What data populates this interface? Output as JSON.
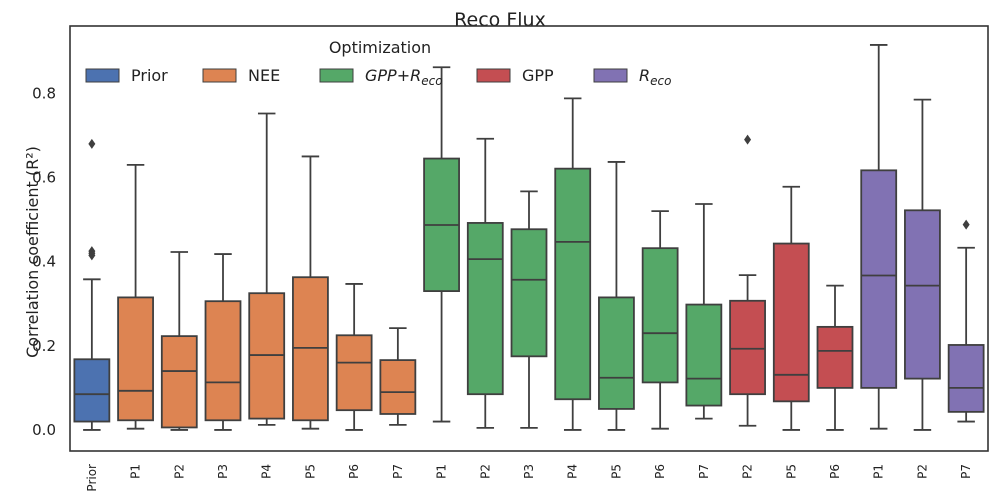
{
  "chart_data": {
    "type": "box",
    "title": "Reco Flux",
    "ylabel": "Correlation coefficient (R²)",
    "ylim": [
      -0.05,
      0.96
    ],
    "yticks": [
      "0.0",
      "0.2",
      "0.4",
      "0.6",
      "0.8"
    ],
    "legend": {
      "title": "Optimization",
      "placement": "top-left",
      "entries": [
        {
          "label": "Prior",
          "color": "#4c72b0"
        },
        {
          "label": "NEE",
          "color": "#dd8452"
        },
        {
          "label": "GPP+R",
          "sub": "eco",
          "color": "#55a868"
        },
        {
          "label": "GPP",
          "color": "#c44e52"
        },
        {
          "label": "R",
          "sub": "eco",
          "color": "#8172b3"
        }
      ]
    },
    "boxes": [
      {
        "label": "Prior",
        "group": "Prior",
        "whislo": 0.0,
        "q1": 0.02,
        "med": 0.085,
        "q3": 0.168,
        "whishi": 0.358,
        "fliers": [
          0.68,
          0.425,
          0.42,
          0.415
        ]
      },
      {
        "label": "P1",
        "group": "NEE",
        "whislo": 0.003,
        "q1": 0.023,
        "med": 0.093,
        "q3": 0.315,
        "whishi": 0.63,
        "fliers": []
      },
      {
        "label": "P2",
        "group": "NEE",
        "whislo": 0.0,
        "q1": 0.006,
        "med": 0.14,
        "q3": 0.223,
        "whishi": 0.423,
        "fliers": []
      },
      {
        "label": "P3",
        "group": "NEE",
        "whislo": 0.0,
        "q1": 0.023,
        "med": 0.113,
        "q3": 0.306,
        "whishi": 0.418,
        "fliers": []
      },
      {
        "label": "P4",
        "group": "NEE",
        "whislo": 0.012,
        "q1": 0.027,
        "med": 0.178,
        "q3": 0.325,
        "whishi": 0.752,
        "fliers": []
      },
      {
        "label": "P5",
        "group": "NEE",
        "whislo": 0.003,
        "q1": 0.023,
        "med": 0.195,
        "q3": 0.363,
        "whishi": 0.65,
        "fliers": []
      },
      {
        "label": "P6",
        "group": "NEE",
        "whislo": 0.0,
        "q1": 0.047,
        "med": 0.16,
        "q3": 0.225,
        "whishi": 0.347,
        "fliers": []
      },
      {
        "label": "P7",
        "group": "NEE",
        "whislo": 0.012,
        "q1": 0.038,
        "med": 0.09,
        "q3": 0.166,
        "whishi": 0.242,
        "fliers": []
      },
      {
        "label": "P1",
        "group": "GPP+Reco",
        "whislo": 0.02,
        "q1": 0.33,
        "med": 0.487,
        "q3": 0.645,
        "whishi": 0.862,
        "fliers": []
      },
      {
        "label": "P2",
        "group": "GPP+Reco",
        "whislo": 0.005,
        "q1": 0.085,
        "med": 0.406,
        "q3": 0.492,
        "whishi": 0.692,
        "fliers": []
      },
      {
        "label": "P3",
        "group": "GPP+Reco",
        "whislo": 0.005,
        "q1": 0.175,
        "med": 0.357,
        "q3": 0.477,
        "whishi": 0.567,
        "fliers": []
      },
      {
        "label": "P4",
        "group": "GPP+Reco",
        "whislo": 0.0,
        "q1": 0.073,
        "med": 0.447,
        "q3": 0.621,
        "whishi": 0.788,
        "fliers": []
      },
      {
        "label": "P5",
        "group": "GPP+Reco",
        "whislo": 0.0,
        "q1": 0.05,
        "med": 0.124,
        "q3": 0.315,
        "whishi": 0.637,
        "fliers": []
      },
      {
        "label": "P6",
        "group": "GPP+Reco",
        "whislo": 0.003,
        "q1": 0.113,
        "med": 0.23,
        "q3": 0.432,
        "whishi": 0.52,
        "fliers": []
      },
      {
        "label": "P7",
        "group": "GPP+Reco",
        "whislo": 0.027,
        "q1": 0.058,
        "med": 0.122,
        "q3": 0.298,
        "whishi": 0.537,
        "fliers": []
      },
      {
        "label": "P2",
        "group": "GPP",
        "whislo": 0.01,
        "q1": 0.085,
        "med": 0.193,
        "q3": 0.307,
        "whishi": 0.368,
        "fliers": [
          0.69
        ]
      },
      {
        "label": "P5",
        "group": "GPP",
        "whislo": 0.0,
        "q1": 0.068,
        "med": 0.131,
        "q3": 0.443,
        "whishi": 0.578,
        "fliers": []
      },
      {
        "label": "P6",
        "group": "GPP",
        "whislo": 0.0,
        "q1": 0.1,
        "med": 0.188,
        "q3": 0.245,
        "whishi": 0.343,
        "fliers": []
      },
      {
        "label": "P1",
        "group": "Reco",
        "whislo": 0.003,
        "q1": 0.1,
        "med": 0.367,
        "q3": 0.617,
        "whishi": 0.915,
        "fliers": []
      },
      {
        "label": "P2",
        "group": "Reco",
        "whislo": 0.0,
        "q1": 0.122,
        "med": 0.343,
        "q3": 0.522,
        "whishi": 0.785,
        "fliers": []
      },
      {
        "label": "P7",
        "group": "Reco",
        "whislo": 0.02,
        "q1": 0.043,
        "med": 0.1,
        "q3": 0.202,
        "whishi": 0.433,
        "fliers": [
          0.488
        ]
      }
    ]
  }
}
